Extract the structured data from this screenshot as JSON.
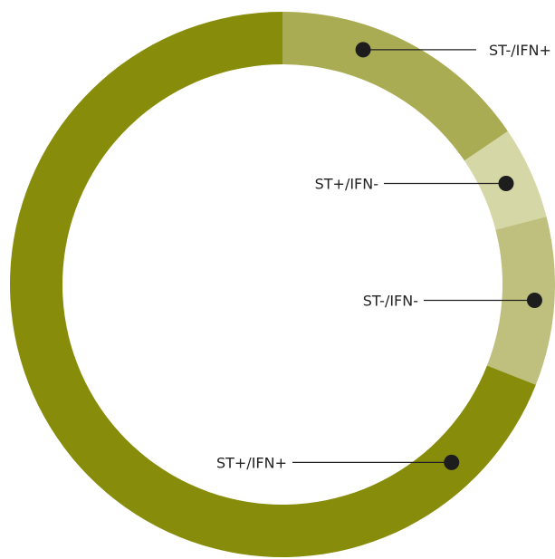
{
  "chart_data": {
    "type": "pie",
    "style": "donut",
    "categories": [
      "ST-/IFN+",
      "ST+/IFN-",
      "ST-/IFN-",
      "ST+/IFN+"
    ],
    "values": [
      15.5,
      5.5,
      10,
      69
    ],
    "colors": [
      "#a9ac52",
      "#d6d7a7",
      "#bfc07d",
      "#878d0a"
    ],
    "labels": [
      "ST-/IFN+",
      "ST+/IFN-",
      "ST-/IFN-",
      "ST+/IFN+"
    ],
    "start": "top",
    "direction": "clockwise",
    "title": ""
  }
}
